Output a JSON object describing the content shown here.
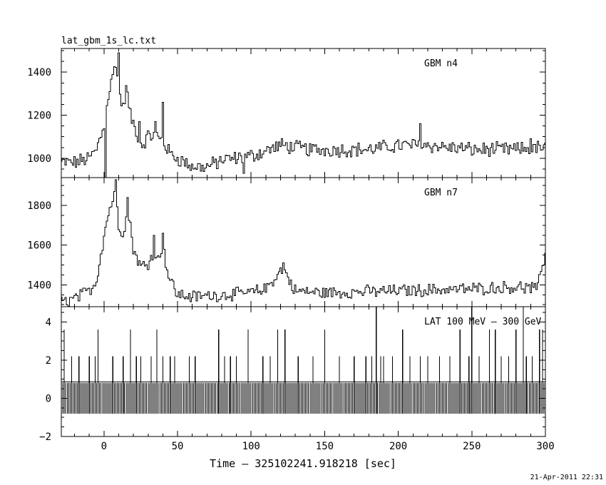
{
  "chart_data": {
    "type": "line",
    "title": "lat_gbm_1s_lc.txt",
    "xlabel": "Time – 325102241.918218 [sec]",
    "timestamp": "21-Apr-2011 22:31",
    "xlim": [
      -29,
      300
    ],
    "x_ticks": [
      0,
      50,
      100,
      150,
      200,
      250,
      300
    ],
    "x_tick_labels": [
      "0",
      "50",
      "100",
      "150",
      "200",
      "250",
      "300"
    ],
    "panels": [
      {
        "name": "GBM n4",
        "ylim": [
          910,
          1510
        ],
        "y_ticks": [
          1000,
          1200,
          1400
        ],
        "y_tick_labels": [
          "1000",
          "1200",
          "1400"
        ],
        "profile": [
          [
            -30,
            980
          ],
          [
            -20,
            980
          ],
          [
            -10,
            1000
          ],
          [
            -5,
            1040
          ],
          [
            0,
            1150
          ],
          [
            3,
            1290
          ],
          [
            6,
            1380
          ],
          [
            8,
            1450
          ],
          [
            10,
            1320
          ],
          [
            13,
            1230
          ],
          [
            15,
            1330
          ],
          [
            18,
            1200
          ],
          [
            22,
            1120
          ],
          [
            26,
            1060
          ],
          [
            30,
            1100
          ],
          [
            35,
            1110
          ],
          [
            40,
            1080
          ],
          [
            45,
            1020
          ],
          [
            50,
            1000
          ],
          [
            60,
            960
          ],
          [
            70,
            960
          ],
          [
            80,
            990
          ],
          [
            100,
            1010
          ],
          [
            120,
            1060
          ],
          [
            140,
            1040
          ],
          [
            160,
            1040
          ],
          [
            180,
            1040
          ],
          [
            200,
            1060
          ],
          [
            220,
            1060
          ],
          [
            250,
            1040
          ],
          [
            280,
            1040
          ],
          [
            300,
            1050
          ]
        ],
        "spikes": [
          [
            10,
            1490
          ],
          [
            40,
            1260
          ],
          [
            24,
            1170
          ],
          [
            35,
            1170
          ],
          [
            1,
            910
          ],
          [
            95,
            930
          ],
          [
            215,
            1160
          ],
          [
            290,
            1090
          ]
        ],
        "noise": 30
      },
      {
        "name": "GBM n7",
        "ylim": [
          1290,
          1940
        ],
        "y_ticks": [
          1400,
          1600,
          1800
        ],
        "y_tick_labels": [
          "1400",
          "1600",
          "1800"
        ],
        "profile": [
          [
            -30,
            1310
          ],
          [
            -20,
            1330
          ],
          [
            -10,
            1370
          ],
          [
            -5,
            1420
          ],
          [
            0,
            1650
          ],
          [
            3,
            1760
          ],
          [
            6,
            1830
          ],
          [
            8,
            1880
          ],
          [
            10,
            1700
          ],
          [
            13,
            1660
          ],
          [
            16,
            1780
          ],
          [
            18,
            1700
          ],
          [
            20,
            1580
          ],
          [
            25,
            1490
          ],
          [
            30,
            1510
          ],
          [
            33,
            1560
          ],
          [
            36,
            1520
          ],
          [
            40,
            1600
          ],
          [
            44,
            1440
          ],
          [
            50,
            1350
          ],
          [
            60,
            1340
          ],
          [
            80,
            1350
          ],
          [
            100,
            1360
          ],
          [
            110,
            1380
          ],
          [
            118,
            1450
          ],
          [
            122,
            1490
          ],
          [
            126,
            1420
          ],
          [
            130,
            1370
          ],
          [
            150,
            1360
          ],
          [
            200,
            1370
          ],
          [
            250,
            1380
          ],
          [
            280,
            1390
          ],
          [
            295,
            1380
          ],
          [
            298,
            1500
          ],
          [
            300,
            1540
          ]
        ],
        "spikes": [
          [
            8,
            1930
          ],
          [
            16,
            1840
          ],
          [
            34,
            1650
          ],
          [
            40,
            1660
          ],
          [
            122,
            1510
          ],
          [
            300,
            1560
          ]
        ],
        "noise": 28
      },
      {
        "name": "LAT 100 MeV – 300 GeV",
        "ylim": [
          -2,
          4.8
        ],
        "y_ticks": [
          -2,
          0,
          2,
          4
        ],
        "y_tick_labels": [
          "−2",
          "0",
          "2",
          "4"
        ],
        "dense_band": [
          -0.8,
          0.8
        ],
        "spikes": [
          [
            -27,
            3.6
          ],
          [
            -22,
            2.2
          ],
          [
            -17,
            2.2
          ],
          [
            -10,
            2.2
          ],
          [
            -6,
            2.2
          ],
          [
            -4,
            3.6
          ],
          [
            6,
            2.2
          ],
          [
            13,
            2.2
          ],
          [
            18,
            3.6
          ],
          [
            22,
            2.2
          ],
          [
            25,
            2.2
          ],
          [
            32,
            2.2
          ],
          [
            36,
            3.6
          ],
          [
            40,
            2.2
          ],
          [
            45,
            2.2
          ],
          [
            48,
            2.2
          ],
          [
            58,
            2.2
          ],
          [
            62,
            2.2
          ],
          [
            78,
            3.6
          ],
          [
            82,
            2.2
          ],
          [
            86,
            2.2
          ],
          [
            90,
            2.2
          ],
          [
            98,
            3.6
          ],
          [
            108,
            2.2
          ],
          [
            113,
            2.2
          ],
          [
            118,
            3.6
          ],
          [
            123,
            3.6
          ],
          [
            132,
            2.2
          ],
          [
            142,
            2.2
          ],
          [
            150,
            3.6
          ],
          [
            160,
            2.2
          ],
          [
            170,
            2.2
          ],
          [
            178,
            2.2
          ],
          [
            182,
            2.2
          ],
          [
            185,
            4.8
          ],
          [
            188,
            2.2
          ],
          [
            190,
            2.2
          ],
          [
            196,
            2.2
          ],
          [
            203,
            3.6
          ],
          [
            208,
            2.2
          ],
          [
            215,
            2.2
          ],
          [
            220,
            2.2
          ],
          [
            228,
            2.2
          ],
          [
            235,
            2.2
          ],
          [
            242,
            3.6
          ],
          [
            248,
            2.2
          ],
          [
            250,
            4.8
          ],
          [
            255,
            2.2
          ],
          [
            262,
            3.6
          ],
          [
            266,
            3.6
          ],
          [
            270,
            2.2
          ],
          [
            275,
            2.2
          ],
          [
            280,
            3.6
          ],
          [
            285,
            4.8
          ],
          [
            287,
            2.2
          ],
          [
            291,
            2.2
          ],
          [
            296,
            3.6
          ],
          [
            298,
            3.6
          ]
        ]
      }
    ]
  }
}
